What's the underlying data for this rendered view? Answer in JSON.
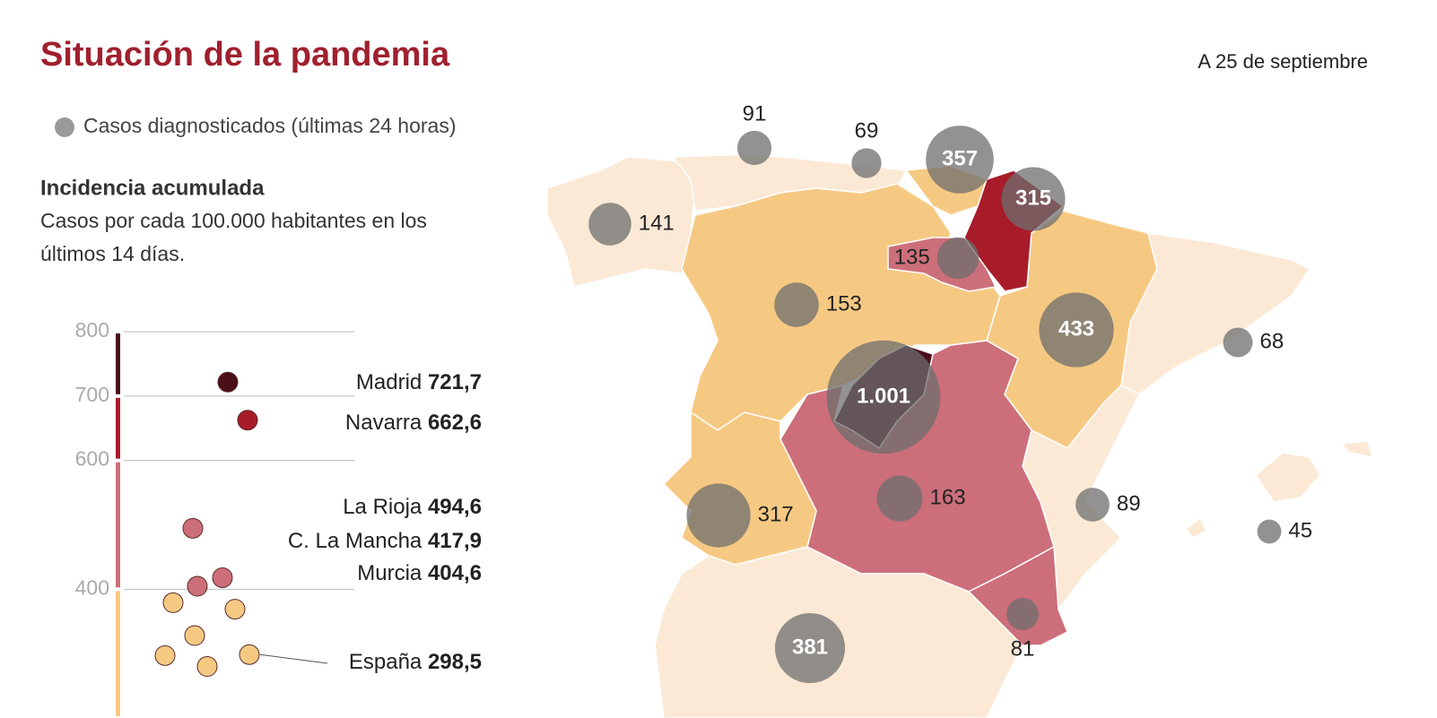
{
  "title": "Situación de la pandemia",
  "date": "A 25 de septiembre",
  "legend": "Casos diagnosticados (últimas 24 horas)",
  "incidence_title": "Incidencia acumulada",
  "incidence_subtitle": [
    "Casos por cada 100.000 habitantes en los",
    "últimos 14 días."
  ],
  "chart_data": [
    {
      "type": "dot",
      "ylim": [
        200,
        800
      ],
      "yticks": [
        400,
        600,
        700,
        800
      ],
      "colors": [
        "#f6c983",
        "#cc6f7a",
        "#a81c2a",
        "#4a0f1a"
      ],
      "names": [
        "Madrid",
        "Navarra",
        "La Rioja",
        "C. La Mancha",
        "Murcia",
        "España",
        null,
        null,
        null,
        null,
        null
      ],
      "values": [
        721.7,
        662.6,
        494.6,
        417.9,
        404.6,
        298.5,
        379,
        369,
        328,
        297,
        280
      ],
      "value_labels": [
        "721,7",
        "662,6",
        "494,6",
        "417,9",
        "404,6",
        "298,5",
        null,
        null,
        null,
        null,
        null
      ]
    },
    {
      "type": "bubble-map",
      "color": "#6e6e6e",
      "values": [
        91,
        69,
        357,
        315,
        141,
        135,
        153,
        433,
        68,
        1001,
        89,
        45,
        163,
        317,
        81,
        381
      ],
      "value_labels": [
        null,
        null,
        null,
        null,
        null,
        null,
        null,
        null,
        null,
        "1.001",
        null,
        null,
        null,
        null,
        null,
        null
      ]
    }
  ]
}
